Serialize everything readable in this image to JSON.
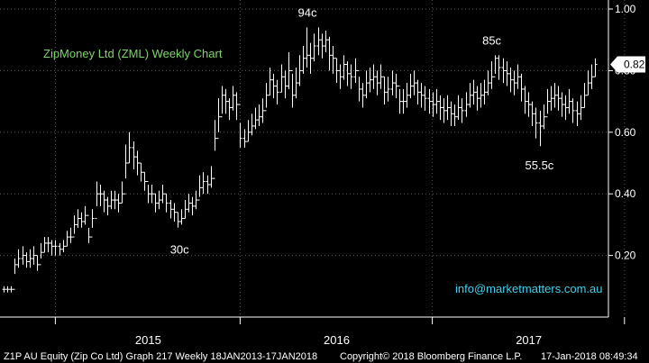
{
  "chart_data": {
    "type": "bar",
    "style": "ohlc-weekly",
    "title": "ZipMoney Ltd (ZML) Weekly Chart",
    "ylim": [
      0.0,
      1.02
    ],
    "yticks": [
      {
        "value": 1.0,
        "label": "1.00"
      },
      {
        "value": 0.8,
        "label": "0.80"
      },
      {
        "value": 0.6,
        "label": "0.60"
      },
      {
        "value": 0.4,
        "label": "0.40"
      },
      {
        "value": 0.2,
        "label": "0.20"
      }
    ],
    "xticks": [
      "2015",
      "2016",
      "2017"
    ],
    "last_price": {
      "value": 0.82,
      "label": "0.82"
    },
    "annotations": [
      {
        "text": "94c",
        "value": 0.94
      },
      {
        "text": "85c",
        "value": 0.85
      },
      {
        "text": "30c",
        "value": 0.3
      },
      {
        "text": "55.5c",
        "value": 0.555
      }
    ],
    "series": [
      {
        "close": [
          0.09,
          0.09,
          0.09,
          0.17,
          0.19,
          0.2,
          0.18,
          0.19,
          0.2,
          0.17,
          0.21,
          0.24,
          0.24,
          0.23,
          0.23,
          0.22,
          0.23,
          0.26,
          0.26,
          0.3,
          0.32,
          0.31,
          0.33,
          0.26,
          0.32,
          0.4,
          0.4,
          0.38,
          0.36,
          0.38,
          0.38,
          0.37,
          0.4,
          0.5,
          0.55,
          0.52,
          0.5,
          0.47,
          0.44,
          0.4,
          0.4,
          0.37,
          0.38,
          0.4,
          0.37,
          0.35,
          0.34,
          0.31,
          0.32,
          0.35,
          0.37,
          0.36,
          0.38,
          0.42,
          0.44,
          0.43,
          0.45,
          0.58,
          0.65,
          0.72,
          0.7,
          0.68,
          0.72,
          0.69,
          0.58,
          0.57,
          0.6,
          0.62,
          0.64,
          0.65,
          0.67,
          0.72,
          0.77,
          0.75,
          0.73,
          0.78,
          0.75,
          0.8,
          0.72,
          0.76,
          0.8,
          0.84,
          0.85,
          0.84,
          0.88,
          0.9,
          0.88,
          0.9,
          0.85,
          0.84,
          0.8,
          0.78,
          0.82,
          0.79,
          0.78,
          0.8,
          0.74,
          0.72,
          0.76,
          0.77,
          0.78,
          0.76,
          0.78,
          0.73,
          0.74,
          0.76,
          0.75,
          0.7,
          0.7,
          0.72,
          0.75,
          0.76,
          0.73,
          0.72,
          0.71,
          0.7,
          0.69,
          0.7,
          0.68,
          0.67,
          0.68,
          0.66,
          0.65,
          0.68,
          0.67,
          0.69,
          0.72,
          0.73,
          0.71,
          0.72,
          0.73,
          0.76,
          0.78,
          0.84,
          0.81,
          0.8,
          0.79,
          0.77,
          0.76,
          0.78,
          0.74,
          0.7,
          0.69,
          0.66,
          0.63,
          0.62,
          0.65,
          0.7,
          0.71,
          0.72,
          0.71,
          0.69,
          0.68,
          0.7,
          0.67,
          0.66,
          0.68,
          0.72,
          0.76,
          0.78,
          0.82
        ],
        "high": [
          0.1,
          0.1,
          0.1,
          0.19,
          0.22,
          0.23,
          0.21,
          0.22,
          0.23,
          0.2,
          0.24,
          0.26,
          0.26,
          0.25,
          0.25,
          0.24,
          0.25,
          0.28,
          0.29,
          0.33,
          0.35,
          0.34,
          0.36,
          0.29,
          0.35,
          0.44,
          0.43,
          0.41,
          0.39,
          0.41,
          0.41,
          0.4,
          0.44,
          0.56,
          0.6,
          0.57,
          0.54,
          0.5,
          0.47,
          0.43,
          0.43,
          0.4,
          0.41,
          0.43,
          0.4,
          0.38,
          0.37,
          0.34,
          0.35,
          0.38,
          0.4,
          0.39,
          0.41,
          0.46,
          0.47,
          0.46,
          0.49,
          0.64,
          0.71,
          0.75,
          0.74,
          0.71,
          0.75,
          0.73,
          0.63,
          0.61,
          0.64,
          0.66,
          0.68,
          0.69,
          0.71,
          0.76,
          0.81,
          0.79,
          0.77,
          0.82,
          0.8,
          0.86,
          0.79,
          0.81,
          0.85,
          0.88,
          0.94,
          0.89,
          0.92,
          0.94,
          0.92,
          0.93,
          0.91,
          0.88,
          0.84,
          0.82,
          0.85,
          0.83,
          0.82,
          0.84,
          0.78,
          0.76,
          0.8,
          0.81,
          0.82,
          0.8,
          0.82,
          0.78,
          0.78,
          0.8,
          0.79,
          0.74,
          0.74,
          0.76,
          0.79,
          0.8,
          0.77,
          0.76,
          0.75,
          0.74,
          0.73,
          0.74,
          0.72,
          0.71,
          0.72,
          0.7,
          0.69,
          0.72,
          0.71,
          0.73,
          0.76,
          0.77,
          0.75,
          0.76,
          0.77,
          0.8,
          0.83,
          0.85,
          0.85,
          0.84,
          0.83,
          0.81,
          0.8,
          0.82,
          0.79,
          0.75,
          0.73,
          0.7,
          0.68,
          0.67,
          0.69,
          0.74,
          0.75,
          0.76,
          0.75,
          0.73,
          0.72,
          0.74,
          0.71,
          0.7,
          0.72,
          0.76,
          0.8,
          0.82,
          0.84
        ],
        "low": [
          0.08,
          0.08,
          0.08,
          0.14,
          0.16,
          0.17,
          0.16,
          0.16,
          0.17,
          0.15,
          0.19,
          0.21,
          0.21,
          0.2,
          0.2,
          0.2,
          0.21,
          0.23,
          0.24,
          0.27,
          0.29,
          0.29,
          0.3,
          0.24,
          0.29,
          0.36,
          0.36,
          0.34,
          0.33,
          0.35,
          0.35,
          0.34,
          0.37,
          0.45,
          0.5,
          0.48,
          0.46,
          0.44,
          0.41,
          0.37,
          0.37,
          0.34,
          0.35,
          0.37,
          0.34,
          0.32,
          0.31,
          0.29,
          0.3,
          0.32,
          0.34,
          0.33,
          0.35,
          0.39,
          0.4,
          0.4,
          0.42,
          0.54,
          0.6,
          0.66,
          0.66,
          0.64,
          0.67,
          0.64,
          0.55,
          0.55,
          0.57,
          0.59,
          0.61,
          0.62,
          0.63,
          0.68,
          0.72,
          0.71,
          0.69,
          0.73,
          0.71,
          0.74,
          0.68,
          0.71,
          0.75,
          0.79,
          0.81,
          0.79,
          0.83,
          0.85,
          0.84,
          0.86,
          0.8,
          0.79,
          0.76,
          0.74,
          0.77,
          0.75,
          0.74,
          0.76,
          0.7,
          0.68,
          0.71,
          0.73,
          0.74,
          0.72,
          0.74,
          0.69,
          0.7,
          0.72,
          0.71,
          0.66,
          0.66,
          0.68,
          0.71,
          0.72,
          0.69,
          0.68,
          0.67,
          0.66,
          0.65,
          0.66,
          0.64,
          0.63,
          0.64,
          0.62,
          0.62,
          0.64,
          0.63,
          0.65,
          0.68,
          0.69,
          0.67,
          0.68,
          0.69,
          0.72,
          0.74,
          0.79,
          0.77,
          0.76,
          0.75,
          0.73,
          0.72,
          0.74,
          0.7,
          0.66,
          0.65,
          0.62,
          0.58,
          0.555,
          0.61,
          0.66,
          0.67,
          0.68,
          0.67,
          0.65,
          0.64,
          0.66,
          0.63,
          0.62,
          0.64,
          0.68,
          0.72,
          0.74,
          0.78
        ]
      }
    ]
  },
  "footer": {
    "left": "Z1P AU Equity (Zip Co Ltd) Graph 217  Weekly 18JAN2013-17JAN2018",
    "center": "Copyright© 2018 Bloomberg Finance L.P.",
    "right": "17-Jan-2018 08:49:34"
  },
  "watermark": "info@marketmatters.com.au",
  "colors": {
    "background": "#000000",
    "bars": "#ffffff",
    "title": "#7ed36b",
    "grid": "#5a5a5a",
    "email": "#3fd0f0",
    "price_tag_bg": "#ffffff",
    "price_tag_text": "#000000"
  }
}
